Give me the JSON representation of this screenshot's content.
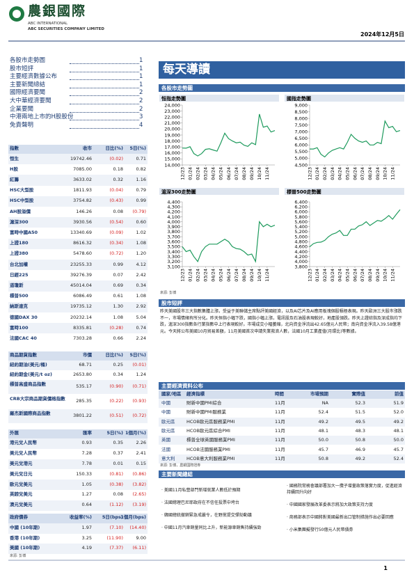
{
  "header": {
    "company_cn": "農銀國際",
    "company_en1": "ABC INTERNATIONAL",
    "company_en2": "ABC SECURITIES COMPANY LIMITED",
    "date": "2024年12月5日"
  },
  "toc": [
    {
      "title": "各股市走勢圖",
      "page": "1"
    },
    {
      "title": "股市短評",
      "page": "1"
    },
    {
      "title": "主要經濟數據公布",
      "page": "1"
    },
    {
      "title": "主要新聞總結",
      "page": "1"
    },
    {
      "title": "國際經濟要聞",
      "page": "2"
    },
    {
      "title": "大中華經濟要聞",
      "page": "2"
    },
    {
      "title": "企業要聞",
      "page": "2"
    },
    {
      "title": "中港兩地上市的H股股份",
      "page": "3"
    },
    {
      "title": "免責聲明",
      "page": "4"
    }
  ],
  "index_table": {
    "headers": [
      "指數",
      "收市",
      "日比(%)",
      "5日(%)"
    ],
    "rows": [
      [
        "恒生",
        "19742.46",
        "(0.02)",
        "0.71"
      ],
      [
        "H股",
        "7085.00",
        "0.18",
        "0.82"
      ],
      [
        "紅籌",
        "3633.02",
        "0.32",
        "1.16"
      ],
      [
        "HSC大型股",
        "1811.93",
        "(0.04)",
        "0.79"
      ],
      [
        "HSC中型股",
        "3754.82",
        "(0.43)",
        "0.99"
      ],
      [
        "AH股溢價",
        "146.26",
        "0.08",
        "(0.79)"
      ],
      [
        "滬深300",
        "3930.56",
        "(0.54)",
        "0.60"
      ],
      [
        "富時中國A50",
        "13340.69",
        "(0.09)",
        "1.02"
      ],
      [
        "上證180",
        "8616.32",
        "(0.34)",
        "1.08"
      ],
      [
        "上證380",
        "5478.60",
        "(0.72)",
        "1.20"
      ],
      [
        "台北加權",
        "23255.33",
        "0.99",
        "4.12"
      ],
      [
        "日經225",
        "39276.39",
        "0.07",
        "2.42"
      ],
      [
        "道瓊斯",
        "45014.04",
        "0.69",
        "0.34"
      ],
      [
        "標普500",
        "6086.49",
        "0.61",
        "1.08"
      ],
      [
        "納斯達克",
        "19735.12",
        "1.30",
        "2.92"
      ],
      [
        "德國DAX 30",
        "20232.14",
        "1.08",
        "5.04"
      ],
      [
        "富時100",
        "8335.81",
        "(0.28)",
        "0.74"
      ],
      [
        "法國CAC 40",
        "7303.28",
        "0.66",
        "2.24"
      ]
    ]
  },
  "commodity_table": {
    "headers": [
      "商品期貨指數",
      "市價",
      "日比(%)",
      "5日(%)"
    ],
    "rows": [
      [
        "紐約期油(美元/桶)",
        "68.71",
        "0.25",
        "(0.01)"
      ],
      [
        "紐約期金(美元/t oz)",
        "2653.80",
        "0.34",
        "1.24"
      ],
      [
        "標普高盛商品指數",
        "535.17",
        "(0.90)",
        "(0.71)"
      ],
      [
        "CRB大宗商品期貨價格指數",
        "285.35",
        "(0.22)",
        "(0.93)"
      ],
      [
        "羅杰斯國際商品指數",
        "3801.22",
        "(0.51)",
        "(0.72)"
      ]
    ]
  },
  "fx_table": {
    "headers": [
      "外匯",
      "匯率",
      "5日(%)",
      "1個月(%)"
    ],
    "rows": [
      [
        "港元兌人民幣",
        "0.93",
        "0.35",
        "2.26"
      ],
      [
        "美元兌人民幣",
        "7.28",
        "0.37",
        "2.41"
      ],
      [
        "美元兌港元",
        "7.78",
        "0.01",
        "0.15"
      ],
      [
        "美元兌日元",
        "150.33",
        "(0.81)",
        "(0.86)"
      ],
      [
        "歐元兌美元",
        "1.05",
        "(0.38)",
        "(3.82)"
      ],
      [
        "英鎊兌美元",
        "1.27",
        "0.08",
        "(2.65)"
      ],
      [
        "澳元兌美元",
        "0.64",
        "(1.12)",
        "(3.19)"
      ]
    ]
  },
  "bond_table": {
    "headers": [
      "政府債券",
      "收益率(%)",
      "5日(bps)",
      "1個月(bps)"
    ],
    "rows": [
      [
        "中國 (10年期)",
        "1.97",
        "(7.10)",
        "(14.40)"
      ],
      [
        "香港 (10年期)",
        "3.25",
        "(11.90)",
        "9.00"
      ],
      [
        "美國 (10年期)",
        "4.19",
        "(7.37)",
        "(6.11)"
      ]
    ]
  },
  "left_source": "來源: 彭博",
  "banner": "每天導讀",
  "sections": {
    "charts": "各股市走勢圖",
    "comment": "股市短評",
    "econ": "主要經濟資料公布",
    "news": "主要新聞總結"
  },
  "chart_data": [
    {
      "type": "line",
      "title": "恒指走勢圖",
      "color": "#1d9a5c",
      "categories": [
        "12/23",
        null,
        "01/24",
        null,
        "02/24",
        null,
        "03/24",
        null,
        "04/24",
        null,
        "05/24",
        null,
        "06/24",
        null,
        "07/24",
        null,
        "08/24",
        null,
        "09/24",
        null,
        "10/24",
        null,
        "11/24",
        null,
        null
      ],
      "values": [
        16830,
        16800,
        17050,
        15900,
        15500,
        15900,
        16600,
        16700,
        16500,
        16300,
        17700,
        19300,
        18400,
        18000,
        17700,
        17800,
        17300,
        17100,
        17700,
        17400,
        22500,
        20300,
        20500,
        19500,
        19740
      ],
      "ylim": [
        14000,
        24000
      ],
      "yticks": [
        {
          "value": 14000,
          "label": "14,000"
        },
        {
          "value": 15000,
          "label": "15,000"
        },
        {
          "value": 16000,
          "label": "16,000"
        },
        {
          "value": 17000,
          "label": "17,000"
        },
        {
          "value": 18000,
          "label": "18,000"
        },
        {
          "value": 19000,
          "label": "19,000"
        },
        {
          "value": 20000,
          "label": "20,000"
        },
        {
          "value": 21000,
          "label": "21,000"
        },
        {
          "value": 22000,
          "label": "22,000"
        },
        {
          "value": 23000,
          "label": "23,000"
        },
        {
          "value": 24000,
          "label": "24,000"
        }
      ]
    },
    {
      "type": "line",
      "title": "國指走勢圖",
      "color": "#1d9a5c",
      "categories": [
        "12/23",
        null,
        "01/24",
        null,
        "02/24",
        null,
        "03/24",
        null,
        "04/24",
        null,
        "05/24",
        null,
        "06/24",
        null,
        "07/24",
        null,
        "08/24",
        null,
        "09/24",
        null,
        "10/24",
        null,
        "11/24",
        null,
        null
      ],
      "values": [
        5700,
        5700,
        5800,
        5300,
        5100,
        5400,
        5600,
        5700,
        5800,
        5700,
        6200,
        6800,
        6500,
        6300,
        6200,
        6300,
        6000,
        6000,
        6200,
        6100,
        7800,
        7300,
        7400,
        7000,
        7085
      ],
      "ylim": [
        4500,
        9000
      ],
      "yticks": [
        {
          "value": 4500,
          "label": "4,500"
        },
        {
          "value": 5000,
          "label": "5,000"
        },
        {
          "value": 5500,
          "label": "5,500"
        },
        {
          "value": 6000,
          "label": "6,000"
        },
        {
          "value": 6500,
          "label": "6,500"
        },
        {
          "value": 7000,
          "label": "7,000"
        },
        {
          "value": 7500,
          "label": "7,500"
        },
        {
          "value": 8000,
          "label": "8,000"
        },
        {
          "value": 8500,
          "label": "8,500"
        },
        {
          "value": 9000,
          "label": "9,000"
        }
      ]
    },
    {
      "type": "line",
      "title": "滬深300走勢圖",
      "color": "#1d9a5c",
      "categories": [
        "12/23",
        null,
        "01/24",
        null,
        "02/24",
        null,
        "03/24",
        null,
        "04/24",
        null,
        "05/24",
        null,
        "06/24",
        null,
        "07/24",
        null,
        "08/24",
        null,
        "09/24",
        null,
        "10/24",
        null,
        "11/24",
        null,
        null
      ],
      "values": [
        3500,
        3400,
        3430,
        3300,
        3200,
        3400,
        3500,
        3550,
        3550,
        3550,
        3600,
        3650,
        3600,
        3500,
        3460,
        3450,
        3400,
        3330,
        3350,
        3200,
        4000,
        3900,
        3950,
        3900,
        3930
      ],
      "ylim": [
        3100,
        4400
      ],
      "yticks": [
        {
          "value": 3100,
          "label": "3,100"
        },
        {
          "value": 3200,
          "label": "3,200"
        },
        {
          "value": 3300,
          "label": "3,300"
        },
        {
          "value": 3400,
          "label": "3,400"
        },
        {
          "value": 3500,
          "label": "3,500"
        },
        {
          "value": 3600,
          "label": "3,600"
        },
        {
          "value": 3700,
          "label": "3,700"
        },
        {
          "value": 3800,
          "label": "3,800"
        },
        {
          "value": 3900,
          "label": "3,900"
        },
        {
          "value": 4000,
          "label": "4,000"
        },
        {
          "value": 4100,
          "label": "4,100"
        },
        {
          "value": 4200,
          "label": "4,200"
        },
        {
          "value": 4300,
          "label": "4,300"
        },
        {
          "value": 4400,
          "label": "4,400"
        }
      ]
    },
    {
      "type": "line",
      "title": "標普500走勢圖",
      "color": "#1d9a5c",
      "categories": [
        "12/23",
        null,
        "01/24",
        null,
        "02/24",
        null,
        "03/24",
        null,
        "04/24",
        null,
        "05/24",
        null,
        "06/24",
        null,
        "07/24",
        null,
        "08/24",
        null,
        "09/24",
        null,
        "10/24",
        null,
        "11/24",
        null,
        null
      ],
      "values": [
        4590,
        4720,
        4770,
        4780,
        4850,
        5000,
        5100,
        5150,
        5250,
        5050,
        5050,
        5300,
        5300,
        5430,
        5480,
        5600,
        5450,
        5550,
        5650,
        5620,
        5720,
        5850,
        5700,
        5900,
        6086
      ],
      "ylim": [
        3800,
        6400
      ],
      "yticks": [
        {
          "value": 3800,
          "label": "3,800"
        },
        {
          "value": 4000,
          "label": "4,000"
        },
        {
          "value": 4200,
          "label": "4,200"
        },
        {
          "value": 4400,
          "label": "4,400"
        },
        {
          "value": 4600,
          "label": "4,600"
        },
        {
          "value": 4800,
          "label": "4,800"
        },
        {
          "value": 5000,
          "label": "5,000"
        },
        {
          "value": 5200,
          "label": "5,200"
        },
        {
          "value": 5400,
          "label": "5,400"
        },
        {
          "value": 5600,
          "label": "5,600"
        },
        {
          "value": 5800,
          "label": "5,800"
        },
        {
          "value": 6000,
          "label": "6,000"
        },
        {
          "value": 6200,
          "label": "6,200"
        },
        {
          "value": 6400,
          "label": "6,400"
        }
      ]
    }
  ],
  "chart_source": "來源: 彭博",
  "comment_text": "昨天美國股市三大指數集體上漲，受益于美聯儲主席點評美國經濟，以及AI芯片及AI應用板塊個股積極表現。昨天歐洲三大股市漲跌不一，市場情緒有所分化。昨天恒指小幅下跌，國指小幅上漲，電訊股及石油股表現較好，地產股領跌。昨天上證綜指及深成指均下跌，滬深300指數各行業指數中上行表現較好。市場成交小幅萎縮，北向資金淨流出42.65億元人民幣；南向資金淨流入39.58億港元。今天將公布美國10月貿易差額，11月美國首次申請失業救濟人數，法國10月工業產值(月環比)等數據。",
  "econ_table": {
    "headers": [
      "國家/地區",
      "經濟指標",
      "時間",
      "市場預期",
      "實際值",
      "前值"
    ],
    "rows": [
      [
        "中國",
        "財新中國PMI綜合",
        "11月",
        "NA",
        "52.3",
        "51.9"
      ],
      [
        "中國",
        "財新中國PMI服務業",
        "11月",
        "52.4",
        "51.5",
        "52.0"
      ],
      [
        "歐元區",
        "HCOB歐元區服務業PMI",
        "11月",
        "49.2",
        "49.5",
        "49.2"
      ],
      [
        "歐元區",
        "HCOB歐元區綜合PMI",
        "11月",
        "48.1",
        "48.3",
        "48.1"
      ],
      [
        "英國",
        "標普全球英國服務業PMI",
        "11月",
        "50.0",
        "50.8",
        "50.0"
      ],
      [
        "法國",
        "HCOB法國服務業PMI",
        "11月",
        "45.7",
        "46.9",
        "45.7"
      ],
      [
        "意大利",
        "HCOB意大利服務業PMI",
        "11月",
        "50.8",
        "49.2",
        "52.4"
      ]
    ]
  },
  "econ_source": "來源: 彭博，農銀國際證券",
  "news": {
    "left": [
      "· 美國11月私營部門新增就業人數低於預期",
      "· 法國總理巴尼耶政府在不信任投票中垮台",
      "· 韓國總統撤銷緊急戒嚴令，在野黨提交彈劾動議",
      "· 中國11月汽車銷量同比上升，新能源車銷售持續強勁"
    ],
    "right": [
      "· 國務院常務會議部署加大一攬子增量政策落實力度，促進經濟持續回升向好",
      "· 中國國家發展改革委表示將加大政策支持力度",
      "· 商務部表示中國將對美國最新出口管制措施作出必要回應",
      "· 小米集團擬發行50億元人民幣債券"
    ]
  },
  "page_number": "1"
}
